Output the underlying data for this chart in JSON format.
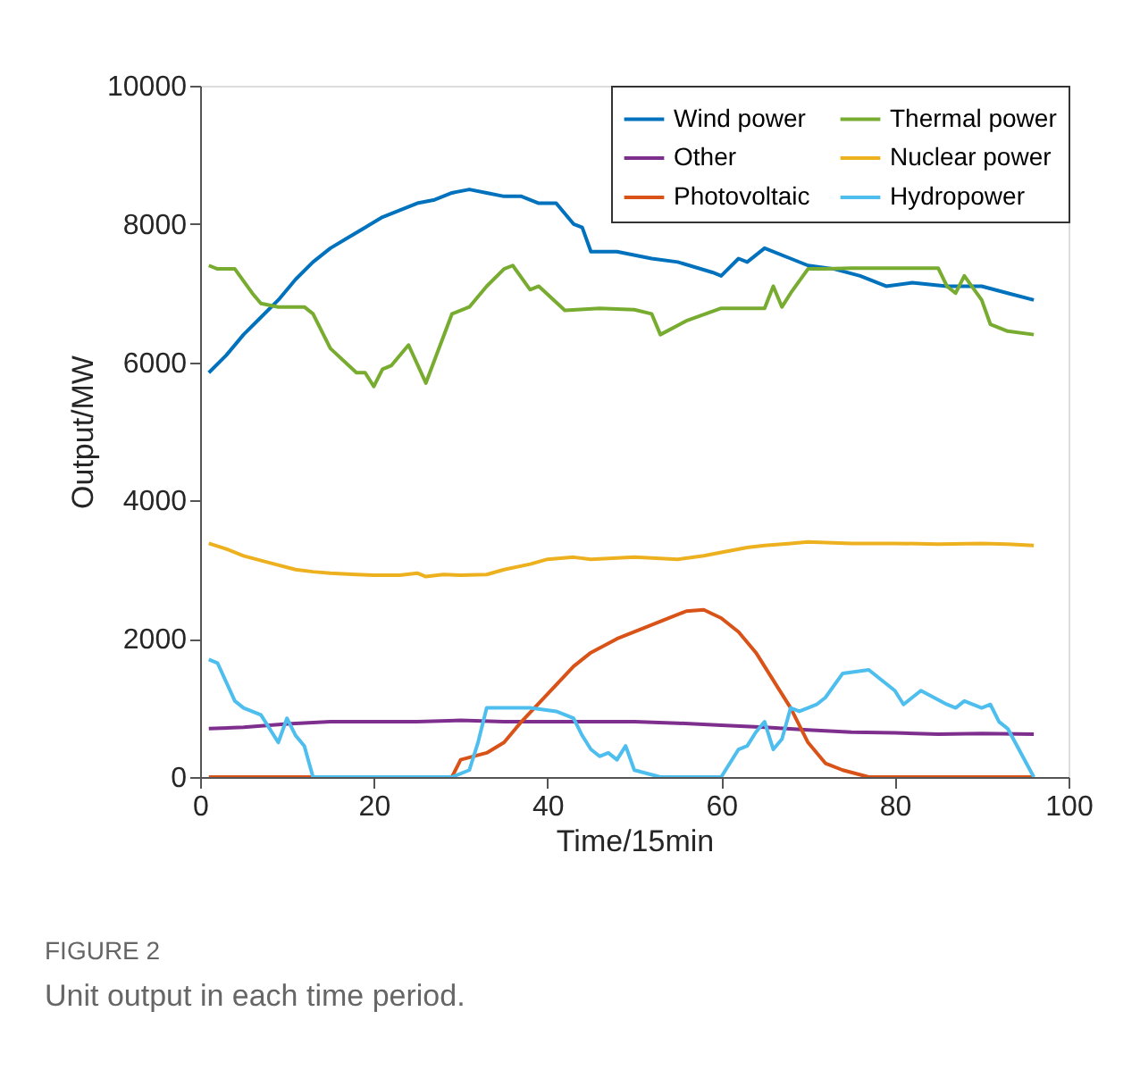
{
  "chart_data": {
    "type": "line",
    "xlabel": "Time/15min",
    "ylabel": "Output/MW",
    "xlim": [
      0,
      100
    ],
    "xticks": [
      0,
      20,
      40,
      60,
      80,
      100
    ],
    "ylim": [
      0,
      10000
    ],
    "yticks": [
      0,
      {
        "value": 2000,
        "label": "2000"
      },
      {
        "value": 4000,
        "label": "4000"
      },
      {
        "value": 6000,
        "label": "6000"
      },
      {
        "value": 8000,
        "label": "8000"
      },
      {
        "value": 10000,
        "label": "10000"
      }
    ],
    "grid": false,
    "legend": "top right",
    "marker": "none",
    "line_style": "solid",
    "annotations": [
      "FIGURE 2",
      "Unit output in each time period."
    ],
    "series": [
      {
        "name": "Wind power",
        "color": "#0072bd",
        "x": [
          1,
          3,
          5,
          7,
          9,
          11,
          13,
          15,
          17,
          19,
          21,
          23,
          25,
          27,
          29,
          31,
          33,
          35,
          37,
          39,
          41,
          43,
          44,
          45,
          48,
          52,
          55,
          59,
          60,
          62,
          63,
          65,
          68,
          70,
          73,
          76,
          79,
          82,
          86,
          90,
          93,
          96
        ],
        "values": [
          5850,
          6100,
          6400,
          6650,
          6900,
          7200,
          7450,
          7650,
          7800,
          7950,
          8100,
          8200,
          8300,
          8350,
          8450,
          8500,
          8450,
          8400,
          8400,
          8300,
          8300,
          8000,
          7950,
          7600,
          7600,
          7500,
          7450,
          7300,
          7250,
          7500,
          7450,
          7650,
          7500,
          7400,
          7350,
          7250,
          7100,
          7150,
          7100,
          7100,
          7000,
          6900
        ]
      },
      {
        "name": "Other",
        "color": "#7e2f8e",
        "x": [
          1,
          5,
          10,
          15,
          20,
          25,
          30,
          35,
          40,
          45,
          50,
          55,
          60,
          65,
          70,
          75,
          80,
          85,
          90,
          96
        ],
        "values": [
          700,
          720,
          770,
          800,
          800,
          800,
          820,
          800,
          800,
          800,
          800,
          780,
          750,
          720,
          680,
          650,
          640,
          620,
          630,
          620
        ]
      },
      {
        "name": "Photovoltaic",
        "color": "#d95319",
        "x": [
          1,
          10,
          20,
          29,
          30,
          33,
          35,
          37,
          40,
          43,
          45,
          48,
          50,
          52,
          54,
          56,
          58,
          60,
          62,
          64,
          66,
          68,
          70,
          72,
          74,
          77,
          80,
          96
        ],
        "values": [
          0,
          0,
          0,
          0,
          250,
          350,
          500,
          800,
          1200,
          1600,
          1800,
          2000,
          2100,
          2200,
          2300,
          2400,
          2420,
          2300,
          2100,
          1800,
          1400,
          1000,
          500,
          200,
          100,
          0,
          0,
          0
        ]
      },
      {
        "name": "Thermal power",
        "color": "#77ac30",
        "x": [
          1,
          2,
          4,
          6,
          7,
          9,
          12,
          13,
          15,
          18,
          19,
          20,
          21,
          22,
          24,
          26,
          29,
          31,
          33,
          35,
          36,
          38,
          39,
          42,
          46,
          50,
          52,
          53,
          56,
          60,
          63,
          65,
          66,
          67,
          68,
          70,
          72,
          75,
          80,
          85,
          86,
          87,
          88,
          90,
          91,
          93,
          96
        ],
        "values": [
          7400,
          7350,
          7350,
          7000,
          6850,
          6800,
          6800,
          6700,
          6200,
          5850,
          5850,
          5650,
          5900,
          5950,
          6250,
          5700,
          6700,
          6800,
          7100,
          7350,
          7400,
          7050,
          7100,
          6750,
          6780,
          6760,
          6700,
          6400,
          6600,
          6780,
          6780,
          6780,
          7100,
          6800,
          7000,
          7350,
          7350,
          7360,
          7360,
          7360,
          7100,
          7000,
          7250,
          6900,
          6550,
          6450,
          6400
        ]
      },
      {
        "name": "Nuclear power",
        "color": "#edb120",
        "x": [
          1,
          3,
          5,
          8,
          11,
          13,
          15,
          18,
          20,
          23,
          25,
          26,
          28,
          30,
          33,
          35,
          38,
          40,
          43,
          45,
          48,
          50,
          55,
          58,
          60,
          63,
          65,
          68,
          70,
          75,
          80,
          85,
          90,
          93,
          96
        ],
        "values": [
          3380,
          3300,
          3200,
          3100,
          3000,
          2970,
          2950,
          2930,
          2920,
          2920,
          2950,
          2900,
          2930,
          2920,
          2930,
          3000,
          3080,
          3150,
          3180,
          3150,
          3170,
          3180,
          3150,
          3200,
          3250,
          3320,
          3350,
          3380,
          3400,
          3380,
          3380,
          3370,
          3380,
          3370,
          3350
        ]
      },
      {
        "name": "Hydropower",
        "color": "#4dbeee",
        "x": [
          1,
          2,
          4,
          5,
          7,
          9,
          10,
          11,
          12,
          13,
          20,
          29,
          31,
          32,
          33,
          38,
          41,
          43,
          44,
          45,
          46,
          47,
          48,
          49,
          50,
          53,
          60,
          62,
          63,
          64,
          65,
          66,
          67,
          68,
          69,
          70,
          71,
          72,
          74,
          77,
          79,
          80,
          81,
          83,
          86,
          87,
          88,
          90,
          91,
          92,
          93,
          96
        ],
        "values": [
          1700,
          1650,
          1100,
          1000,
          900,
          500,
          850,
          600,
          450,
          0,
          0,
          0,
          100,
          500,
          1000,
          1000,
          950,
          850,
          600,
          400,
          300,
          350,
          250,
          450,
          100,
          0,
          0,
          400,
          450,
          650,
          800,
          400,
          550,
          1000,
          950,
          1000,
          1050,
          1150,
          1500,
          1550,
          1350,
          1250,
          1050,
          1250,
          1050,
          1000,
          1100,
          1000,
          1050,
          800,
          700,
          0
        ]
      }
    ]
  }
}
